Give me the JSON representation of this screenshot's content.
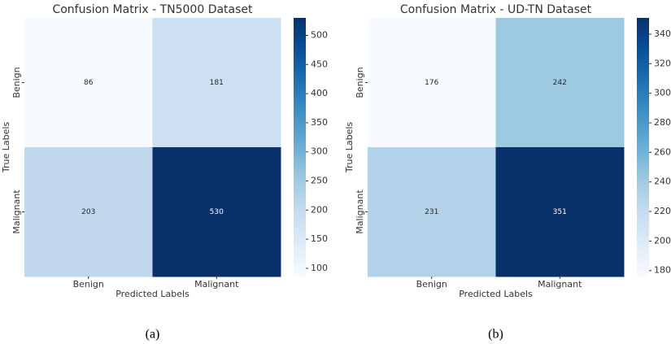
{
  "chart_data": [
    {
      "type": "heatmap",
      "title": "Confusion Matrix - TN5000 Dataset",
      "x_label": "Predicted Labels",
      "y_label": "True Labels",
      "x_categories": [
        "Benign",
        "Malignant"
      ],
      "y_categories": [
        "Benign",
        "Malignant"
      ],
      "values": [
        [
          86,
          181
        ],
        [
          203,
          530
        ]
      ],
      "colormap": "Blues",
      "clim": [
        86,
        530
      ],
      "cticks": [
        100,
        150,
        200,
        250,
        300,
        350,
        400,
        450,
        500
      ],
      "caption": "(a)"
    },
    {
      "type": "heatmap",
      "title": "Confusion Matrix - UD-TN Dataset",
      "x_label": "Predicted Labels",
      "y_label": "True Labels",
      "x_categories": [
        "Benign",
        "Malignant"
      ],
      "y_categories": [
        "Benign",
        "Malignant"
      ],
      "values": [
        [
          176,
          242
        ],
        [
          231,
          351
        ]
      ],
      "colormap": "Blues",
      "clim": [
        176,
        351
      ],
      "cticks": [
        180,
        200,
        220,
        240,
        260,
        280,
        300,
        320,
        340
      ],
      "caption": "(b)"
    }
  ]
}
